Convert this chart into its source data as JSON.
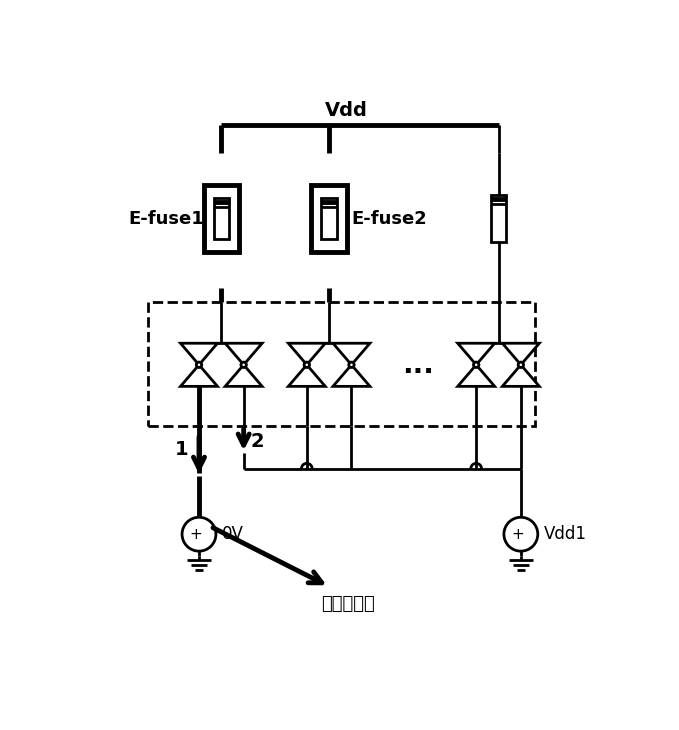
{
  "vdd_label": "Vdd",
  "efuse1_label": "E-fuse1",
  "efuse2_label": "E-fuse2",
  "label_0v": "0V",
  "label_vdd1": "Vdd1",
  "label_1": "1",
  "label_2": "2",
  "label_current": "电流测试点",
  "dots": "...",
  "line_color": "#000000",
  "bg_color": "#ffffff",
  "lw": 2.0,
  "lw_thick": 3.5
}
